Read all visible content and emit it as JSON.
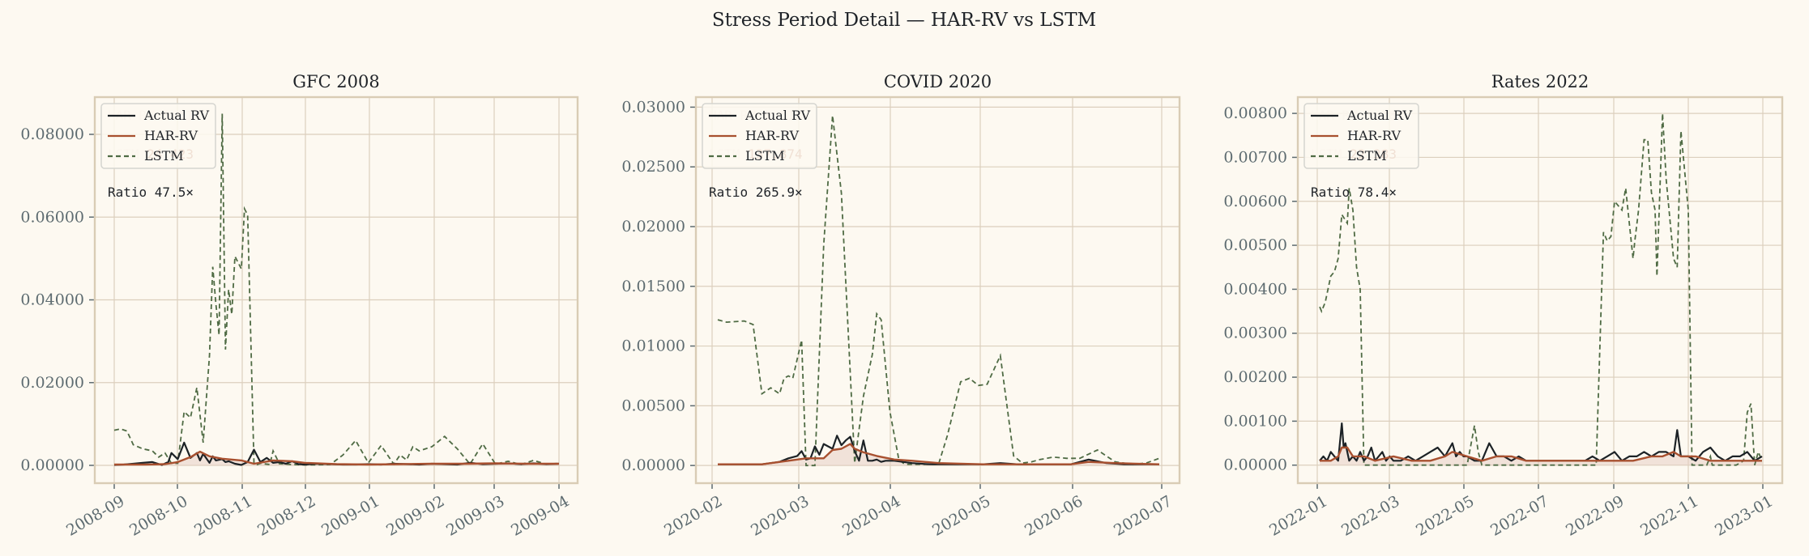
{
  "figure": {
    "title": "Stress Period Detail — HAR-RV vs LSTM",
    "background": "#fdf9f1",
    "colors": {
      "actual": "#1c2226",
      "har": "#a8502f",
      "lstm": "#4f6b44",
      "grid": "#dccfbd",
      "frame": "#d9ccb5",
      "tick_text": "#5d6b70",
      "har_fill": "#e7cfc4"
    },
    "legend": [
      "Actual RV",
      "HAR-RV",
      "LSTM"
    ]
  },
  "chart_data": [
    {
      "type": "line",
      "title": "GFC 2008",
      "xlabel": "",
      "ylabel": "",
      "grid": true,
      "legend_position": "upper left",
      "x_ticks": [
        "2008-09",
        "2008-10",
        "2008-11",
        "2008-12",
        "2009-01",
        "2009-02",
        "2009-03",
        "2009-04"
      ],
      "y_ticks": [
        "0.00000",
        "0.02000",
        "0.04000",
        "0.06000",
        "0.08000"
      ],
      "ylim": [
        -0.0043,
        0.089
      ],
      "y_tick_values": [
        0,
        0.02,
        0.04,
        0.06,
        0.08
      ],
      "annotations": {
        "har_label": "HAR-RV",
        "har_value": "0.514",
        "lstm_label": "LSTM",
        "lstm_value": "24.423",
        "ratio_label": "Ratio",
        "ratio_value": "47.5×"
      },
      "x_pos": [
        0,
        0.6,
        1.0,
        1.4,
        2.0,
        2.4,
        2.6,
        3.0,
        3.3,
        3.6,
        3.9,
        4.2,
        4.5,
        4.8,
        5.2,
        5.6,
        6.0,
        6.5,
        7.0
      ],
      "series": [
        {
          "name": "Actual RV",
          "x": [
            0,
            0.15,
            0.3,
            0.45,
            0.6,
            0.75,
            0.85,
            0.9,
            1.0,
            1.1,
            1.2,
            1.3,
            1.35,
            1.4,
            1.5,
            1.55,
            1.6,
            1.7,
            1.75,
            1.8,
            1.9,
            2.0,
            2.1,
            2.2,
            2.3,
            2.4,
            2.5,
            2.6,
            2.7,
            2.8,
            2.9,
            3.0,
            3.2,
            3.4,
            3.6,
            3.8,
            4.0,
            4.2,
            4.4,
            4.6,
            4.8,
            5.0,
            5.2,
            5.4,
            5.6,
            5.8,
            6.0,
            6.2,
            6.4,
            6.6,
            6.8,
            7.0
          ],
          "values": [
            0.0001,
            0.0002,
            0.0004,
            0.0006,
            0.0008,
            0.0001,
            0.0008,
            0.003,
            0.0015,
            0.0055,
            0.0018,
            0.003,
            0.0012,
            0.0028,
            0.0006,
            0.0022,
            0.0012,
            0.0015,
            0.0008,
            0.001,
            0.0004,
            0.0001,
            0.0008,
            0.0038,
            0.0008,
            0.0018,
            0.0006,
            0.0008,
            0.0004,
            0.001,
            0.0003,
            0.0002,
            0.0004,
            0.0003,
            0.0002,
            0.0002,
            0.0003,
            0.0002,
            0.0004,
            0.0003,
            0.0002,
            0.0004,
            0.0003,
            0.0002,
            0.0006,
            0.0003,
            0.0004,
            0.0005,
            0.0003,
            0.0005,
            0.0003,
            0.0004
          ]
        },
        {
          "name": "HAR-RV",
          "x": [
            0,
            0.5,
            0.8,
            1.0,
            1.2,
            1.35,
            1.5,
            1.7,
            2.0,
            2.2,
            2.5,
            2.8,
            3.0,
            3.5,
            4.0,
            4.5,
            5.0,
            5.5,
            6.0,
            6.5,
            7.0
          ],
          "values": [
            0.0002,
            0.0002,
            0.0003,
            0.0008,
            0.002,
            0.0033,
            0.0022,
            0.0016,
            0.0012,
            0.0004,
            0.0012,
            0.001,
            0.0006,
            0.0003,
            0.0002,
            0.0003,
            0.0004,
            0.0004,
            0.0005,
            0.0004,
            0.0004
          ]
        },
        {
          "name": "LSTM",
          "x": [
            0,
            0.1,
            0.2,
            0.3,
            0.45,
            0.6,
            0.7,
            0.8,
            0.9,
            1.0,
            1.1,
            1.2,
            1.3,
            1.4,
            1.5,
            1.55,
            1.6,
            1.65,
            1.7,
            1.75,
            1.8,
            1.85,
            1.9,
            2.0,
            2.05,
            2.1,
            2.2,
            2.25,
            2.3,
            2.45,
            2.5,
            2.6,
            2.8,
            3.0,
            3.4,
            3.6,
            3.8,
            4.0,
            4.2,
            4.4,
            4.5,
            4.6,
            4.7,
            4.8,
            5.0,
            5.2,
            5.4,
            5.6,
            5.8,
            6.0,
            6.2,
            6.4,
            6.6,
            6.8,
            7.0
          ],
          "values": [
            0.0085,
            0.0088,
            0.0083,
            0.005,
            0.004,
            0.0035,
            0.002,
            0.003,
            0.0005,
            0.0005,
            0.013,
            0.0115,
            0.0188,
            0.0055,
            0.0266,
            0.048,
            0.039,
            0.0315,
            0.085,
            0.028,
            0.0425,
            0.0365,
            0.0505,
            0.0475,
            0.062,
            0.0605,
            0.0005,
            0.0002,
            0.0005,
            0.0002,
            0.0035,
            0.0004,
            0.0002,
            0.0001,
            0.0002,
            0.0025,
            0.006,
            0.0006,
            0.0048,
            0.0003,
            0.0025,
            0.0013,
            0.0045,
            0.0035,
            0.0045,
            0.007,
            0.004,
            0.0003,
            0.0052,
            0.0003,
            0.001,
            0.0002,
            0.0012,
            0.0003,
            0.0005
          ]
        }
      ]
    },
    {
      "type": "line",
      "title": "COVID 2020",
      "xlabel": "",
      "ylabel": "",
      "grid": true,
      "legend_position": "upper left",
      "x_ticks": [
        "2020-02",
        "2020-03",
        "2020-04",
        "2020-05",
        "2020-06",
        "2020-07"
      ],
      "y_ticks": [
        "0.00000",
        "0.00500",
        "0.01000",
        "0.01500",
        "0.02000",
        "0.02500",
        "0.03000"
      ],
      "ylim": [
        -0.00148,
        0.03084
      ],
      "y_tick_values": [
        0,
        0.005,
        0.01,
        0.015,
        0.02,
        0.025,
        0.03
      ],
      "annotations": {
        "har_label": "HAR-RV",
        "har_value": "0.518",
        "lstm_label": "LSTM",
        "lstm_value": "137.874",
        "ratio_label": "Ratio",
        "ratio_value": "265.9×"
      },
      "series": [
        {
          "name": "Actual RV",
          "x": [
            0,
            0.3,
            0.5,
            0.7,
            0.8,
            0.9,
            0.95,
            1.0,
            1.05,
            1.1,
            1.15,
            1.2,
            1.3,
            1.35,
            1.4,
            1.45,
            1.5,
            1.55,
            1.6,
            1.65,
            1.7,
            1.75,
            1.8,
            1.85,
            1.9,
            2.0,
            2.2,
            2.4,
            2.6,
            2.8,
            3.0,
            3.2,
            3.4,
            3.6,
            3.8,
            4.0,
            4.2,
            4.4,
            4.6,
            4.8,
            5.0
          ],
          "values": [
            0.0001,
            0.0001,
            0.0001,
            0.0003,
            0.0006,
            0.0008,
            0.0012,
            0.0005,
            0.0006,
            0.0016,
            0.0009,
            0.0018,
            0.0014,
            0.0025,
            0.0017,
            0.0021,
            0.0024,
            0.0012,
            0.0004,
            0.0021,
            0.0004,
            0.0004,
            0.0005,
            0.0003,
            0.0004,
            0.0004,
            0.0002,
            0.0001,
            0.0001,
            0.0001,
            0.0001,
            0.0002,
            0.0001,
            0.0001,
            0.0001,
            0.0001,
            0.0005,
            0.0002,
            0.0001,
            0.0001,
            0.0001
          ]
        },
        {
          "name": "HAR-RV",
          "x": [
            0,
            0.5,
            0.8,
            1.0,
            1.2,
            1.3,
            1.4,
            1.5,
            1.55,
            1.65,
            1.8,
            2.0,
            2.2,
            2.5,
            3.0,
            3.5,
            4.0,
            4.2,
            4.5,
            5.0
          ],
          "values": [
            0.0001,
            0.0001,
            0.0004,
            0.0006,
            0.0006,
            0.0013,
            0.0014,
            0.0018,
            0.0014,
            0.0011,
            0.0008,
            0.0005,
            0.0004,
            0.0002,
            0.0001,
            0.0001,
            0.0001,
            0.0003,
            0.0002,
            0.0001
          ]
        },
        {
          "name": "LSTM",
          "x": [
            0,
            0.1,
            0.3,
            0.4,
            0.5,
            0.6,
            0.7,
            0.75,
            0.8,
            0.85,
            0.95,
            1.0,
            1.05,
            1.1,
            1.2,
            1.3,
            1.4,
            1.55,
            1.65,
            1.75,
            1.8,
            1.85,
            1.95,
            2.05,
            2.1,
            2.15,
            2.3,
            2.5,
            2.6,
            2.75,
            2.85,
            2.95,
            3.05,
            3.2,
            3.35,
            3.45,
            3.55,
            3.65,
            3.8,
            3.95,
            4.1,
            4.3,
            4.5,
            4.7,
            4.85,
            5.0
          ],
          "values": [
            0.0122,
            0.012,
            0.0121,
            0.0118,
            0.006,
            0.0065,
            0.006,
            0.0073,
            0.0075,
            0.0073,
            0.0105,
            0.0,
            0.0,
            0.0,
            0.0185,
            0.0293,
            0.0228,
            0.0002,
            0.0058,
            0.0093,
            0.0127,
            0.0122,
            0.0045,
            0.0005,
            0.0002,
            0.0001,
            0.0001,
            0.0001,
            0.0025,
            0.007,
            0.0073,
            0.0067,
            0.0068,
            0.0092,
            0.0008,
            0.0002,
            0.0003,
            0.0005,
            0.0007,
            0.0006,
            0.0006,
            0.0013,
            0.0003,
            0.0001,
            0.0002,
            0.0006
          ]
        }
      ]
    },
    {
      "type": "line",
      "title": "Rates 2022",
      "xlabel": "",
      "ylabel": "",
      "grid": true,
      "legend_position": "upper left",
      "x_ticks": [
        "2022-01",
        "2022-03",
        "2022-05",
        "2022-07",
        "2022-09",
        "2022-11",
        "2023-01"
      ],
      "y_ticks": [
        "0.00000",
        "0.00100",
        "0.00200",
        "0.00300",
        "0.00400",
        "0.00500",
        "0.00600",
        "0.00700",
        "0.00800"
      ],
      "ylim": [
        -0.00041,
        0.00837
      ],
      "y_tick_values": [
        0,
        0.001,
        0.002,
        0.003,
        0.004,
        0.005,
        0.006,
        0.007,
        0.008
      ],
      "annotations": {
        "har_label": "HAR-RV",
        "har_value": "0.286",
        "lstm_label": "LSTM",
        "lstm_value": "22.383",
        "ratio_label": "Ratio",
        "ratio_value": "78.4×"
      },
      "series": [
        {
          "name": "Actual RV",
          "x": [
            0,
            0.1,
            0.2,
            0.3,
            0.4,
            0.5,
            0.6,
            0.65,
            0.7,
            0.8,
            0.9,
            1.0,
            1.1,
            1.2,
            1.3,
            1.4,
            1.5,
            1.6,
            1.7,
            1.8,
            1.9,
            2.0,
            2.2,
            2.4,
            2.6,
            2.8,
            3.0,
            3.2,
            3.4,
            3.6,
            3.7,
            3.8,
            3.9,
            4.0,
            4.2,
            4.4,
            4.6,
            4.8,
            5.0,
            5.2,
            5.4,
            5.6,
            5.8,
            6.0,
            6.2,
            6.4,
            6.6,
            6.8,
            7.0,
            7.2,
            7.4,
            7.6,
            7.8,
            8.0,
            8.2,
            8.4,
            8.6,
            8.8,
            9.0,
            9.2,
            9.4,
            9.6,
            9.7,
            9.8,
            10.0,
            10.2,
            10.4,
            10.6,
            10.8,
            11.0,
            11.2,
            11.4,
            11.6,
            11.8,
            12.0
          ],
          "values": [
            0.0001,
            0.0002,
            0.0001,
            0.0003,
            0.0002,
            0.0001,
            0.00095,
            0.0004,
            0.0005,
            0.0001,
            0.0002,
            0.0001,
            0.0003,
            0.0001,
            0.0002,
            0.0004,
            0.0001,
            0.0002,
            0.0003,
            0.0001,
            0.0002,
            0.0001,
            0.0001,
            0.0002,
            0.0001,
            0.0002,
            0.0003,
            0.0004,
            0.0002,
            0.0005,
            0.0002,
            0.0003,
            0.0002,
            0.0002,
            0.0001,
            0.0001,
            0.0005,
            0.0002,
            0.0002,
            0.0001,
            0.0002,
            0.0001,
            0.0001,
            0.0001,
            0.0001,
            0.0001,
            0.0001,
            0.0001,
            0.0001,
            0.0001,
            0.0002,
            0.0001,
            0.0002,
            0.0003,
            0.0001,
            0.0002,
            0.0002,
            0.0003,
            0.0002,
            0.0003,
            0.0003,
            0.0002,
            0.0008,
            0.0002,
            0.0002,
            0.0001,
            0.0003,
            0.0004,
            0.0002,
            0.0001,
            0.0002,
            0.0002,
            0.0003,
            0.0001,
            0.0002
          ]
        },
        {
          "name": "HAR-RV",
          "x": [
            0,
            0.3,
            0.5,
            0.6,
            0.75,
            0.9,
            1.2,
            1.5,
            2.0,
            2.5,
            3.0,
            3.4,
            3.6,
            4.0,
            4.4,
            4.8,
            5.2,
            5.6,
            6.0,
            6.5,
            7.0,
            7.5,
            8.0,
            8.5,
            9.0,
            9.3,
            9.6,
            9.8,
            10.2,
            10.6,
            11.0,
            11.5,
            12.0
          ],
          "values": [
            0.0001,
            0.0001,
            0.0002,
            0.0004,
            0.0004,
            0.0002,
            0.0002,
            0.0001,
            0.0002,
            0.0001,
            0.0001,
            0.0002,
            0.0003,
            0.0002,
            0.0001,
            0.0002,
            0.0002,
            0.0001,
            0.0001,
            0.0001,
            0.0001,
            0.0001,
            0.0001,
            0.0001,
            0.0002,
            0.0002,
            0.0003,
            0.0002,
            0.0002,
            0.0001,
            0.0001,
            0.0001,
            0.0001
          ]
        },
        {
          "name": "LSTM",
          "x": [
            0,
            0.05,
            0.15,
            0.3,
            0.4,
            0.5,
            0.6,
            0.75,
            0.8,
            0.9,
            1.0,
            1.1,
            1.2,
            1.4,
            1.45,
            1.5,
            3.5,
            4.0,
            4.2,
            4.3,
            4.4,
            7.5,
            7.7,
            7.8,
            7.9,
            8.0,
            8.2,
            8.3,
            8.4,
            8.5,
            8.55,
            8.65,
            8.8,
            8.9,
            9.0,
            9.1,
            9.15,
            9.3,
            9.4,
            9.6,
            9.7,
            9.8,
            10.0,
            10.1,
            10.25,
            10.3,
            10.5,
            10.6,
            10.65,
            10.7,
            11.3,
            11.5,
            11.6,
            11.7,
            11.8,
            11.9,
            12.0
          ],
          "values": [
            0.0036,
            0.0035,
            0.0037,
            0.0043,
            0.0044,
            0.0047,
            0.0057,
            0.0055,
            0.0063,
            0.0058,
            0.0045,
            0.004,
            0.0,
            0.0,
            0.0,
            0.0,
            0.0,
            0.0,
            0.0009,
            0.0003,
            0.0,
            0.0,
            0.0053,
            0.0051,
            0.0052,
            0.006,
            0.0058,
            0.0063,
            0.0055,
            0.0047,
            0.0051,
            0.0058,
            0.0074,
            0.0074,
            0.0062,
            0.0058,
            0.0043,
            0.008,
            0.0065,
            0.0047,
            0.0045,
            0.0076,
            0.0058,
            0.0,
            0.0,
            0.0,
            0.0,
            0.0002,
            0.0,
            0.0,
            0.0,
            0.0001,
            0.0012,
            0.0014,
            0.0,
            0.0003,
            0.0001
          ]
        }
      ]
    }
  ]
}
